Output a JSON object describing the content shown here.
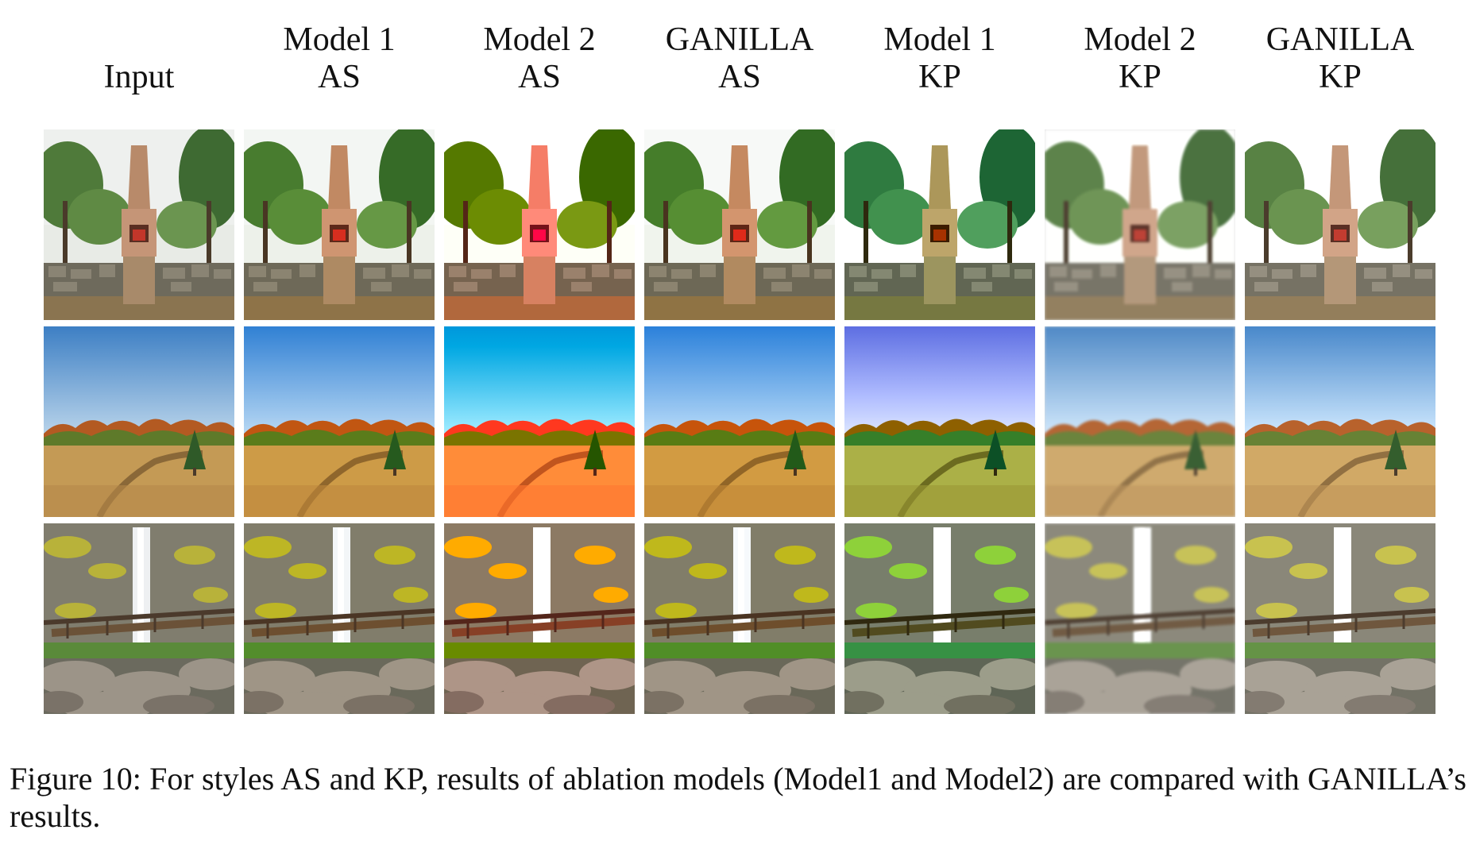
{
  "figure": {
    "columns": [
      {
        "line1": "",
        "line2": "Input"
      },
      {
        "line1": "Model 1",
        "line2": "AS"
      },
      {
        "line1": "Model 2",
        "line2": "AS"
      },
      {
        "line1": "GANILLA",
        "line2": "AS"
      },
      {
        "line1": "Model 1",
        "line2": "KP"
      },
      {
        "line1": "Model 2",
        "line2": "KP"
      },
      {
        "line1": "GANILLA",
        "line2": "KP"
      }
    ],
    "rows": [
      {
        "scene": "stone chimney and wall in forest"
      },
      {
        "scene": "autumn meadow with path under blue sky"
      },
      {
        "scene": "waterfall with wooden footbridge over rocks"
      }
    ],
    "caption": "Figure 10: For styles AS and KP, results of ablation models (Model1 and Model2) are compared with GANILLA’s results."
  }
}
